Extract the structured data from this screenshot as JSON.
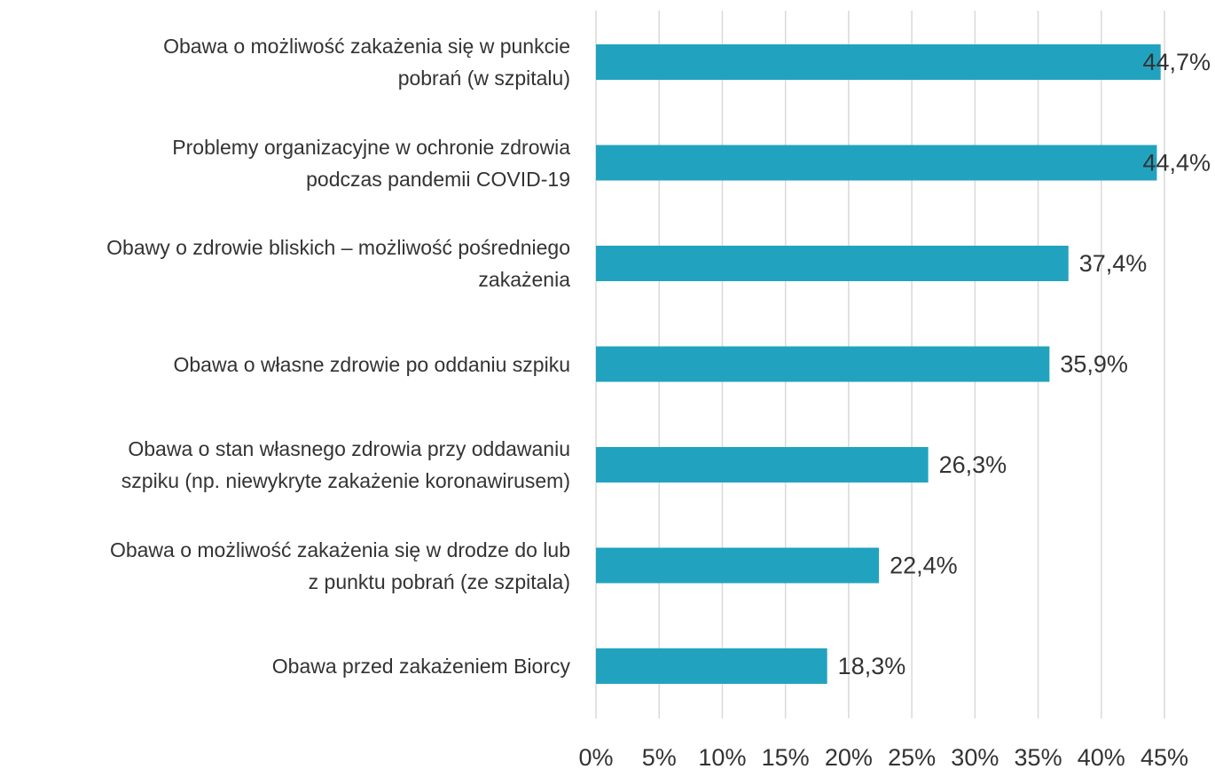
{
  "chart_data": {
    "type": "barh",
    "categories": [
      "Obawa o możliwość zakażenia się w punkcie\npobrań (w szpitalu)",
      "Problemy organizacyjne w ochronie zdrowia\npodczas pandemii COVID-19",
      "Obawy o zdrowie bliskich – możliwość pośredniego\nzakażenia",
      "Obawa o własne zdrowie po oddaniu szpiku",
      "Obawa o stan własnego zdrowia przy oddawaniu\nszpiku (np. niewykryte zakażenie koronawirusem)",
      "Obawa o możliwość zakażenia się w drodze do lub\nz punktu pobrań (ze szpitala)",
      "Obawa przed zakażeniem Biorcy"
    ],
    "values": [
      44.7,
      44.4,
      37.4,
      35.9,
      26.3,
      22.4,
      18.3
    ],
    "value_labels": [
      "44,7%",
      "44,4%",
      "37,4%",
      "35,9%",
      "26,3%",
      "22,4%",
      "18,3%"
    ],
    "color": "#21a3c0",
    "xlim": [
      0,
      45
    ],
    "xticks": [
      {
        "value": 0,
        "label": "0%"
      },
      {
        "value": 5,
        "label": "5%"
      },
      {
        "value": 10,
        "label": "10%"
      },
      {
        "value": 15,
        "label": "15%"
      },
      {
        "value": 20,
        "label": "20%"
      },
      {
        "value": 25,
        "label": "25%"
      },
      {
        "value": 30,
        "label": "30%"
      },
      {
        "value": 35,
        "label": "35%"
      },
      {
        "value": 40,
        "label": "40%"
      },
      {
        "value": 45,
        "label": "45%"
      }
    ],
    "grid": true
  }
}
